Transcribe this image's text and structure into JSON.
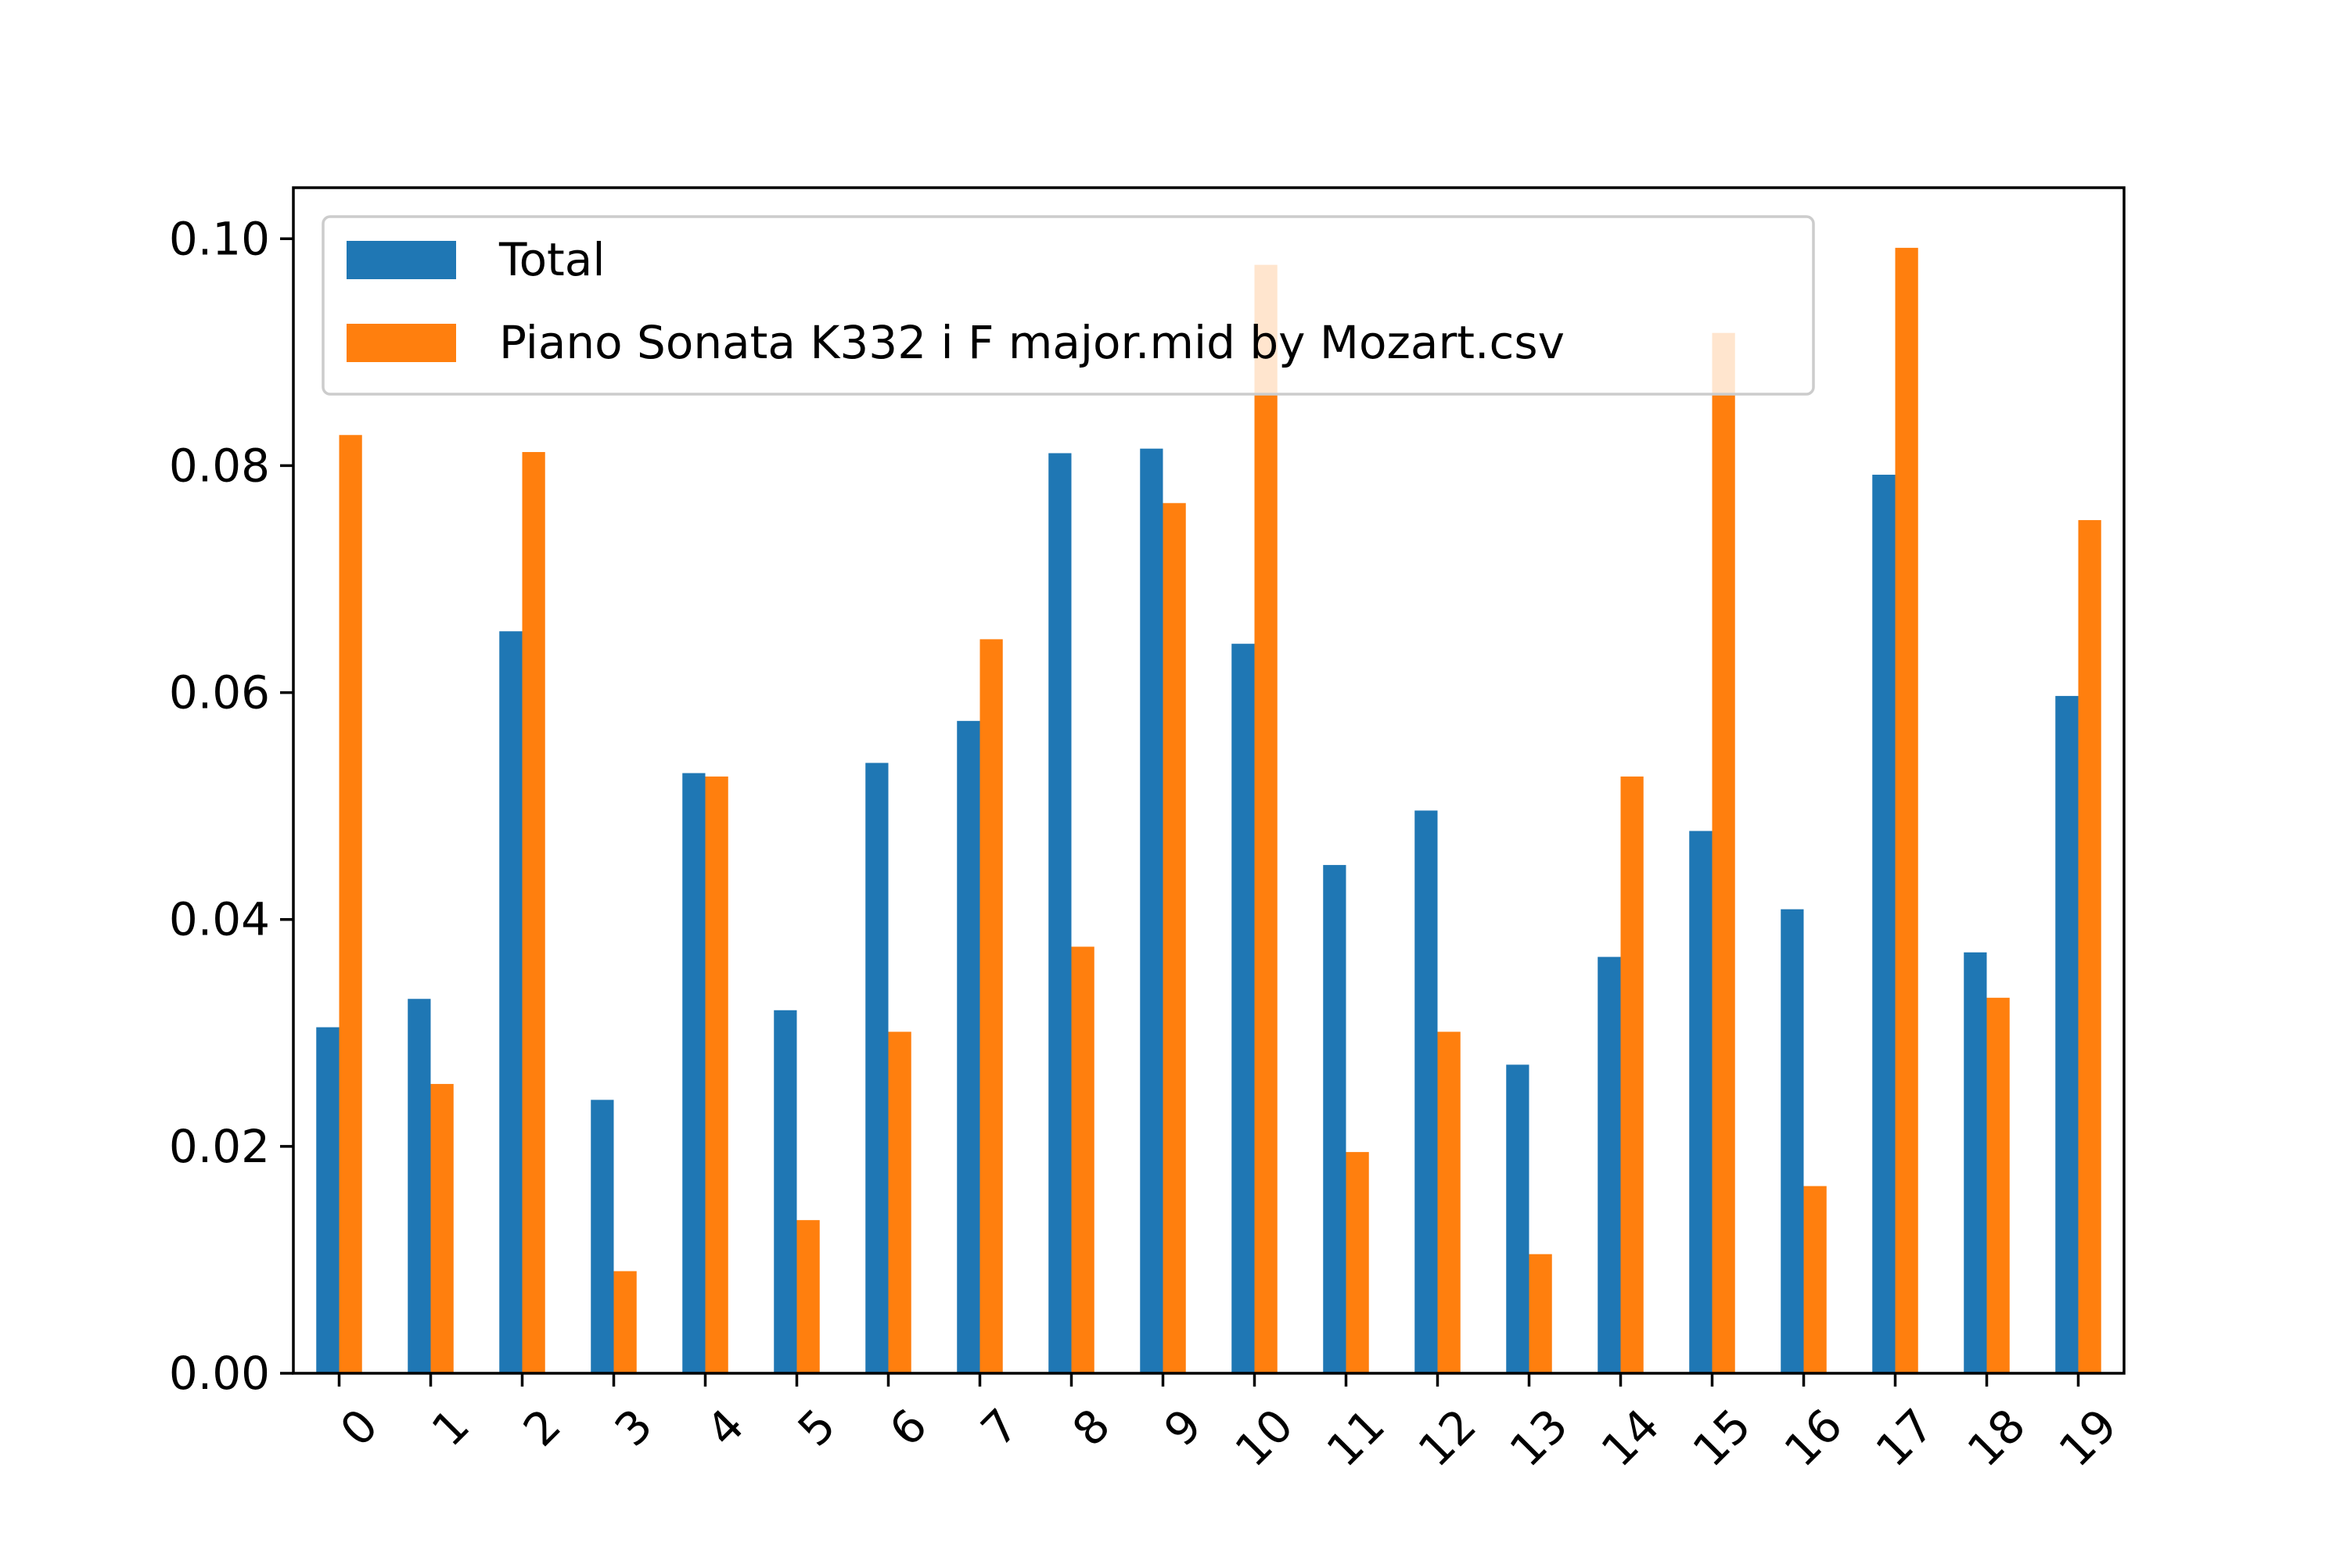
{
  "chart_data": {
    "type": "bar",
    "title": "",
    "xlabel": "",
    "ylabel": "",
    "categories": [
      "0",
      "1",
      "2",
      "3",
      "4",
      "5",
      "6",
      "7",
      "8",
      "9",
      "10",
      "11",
      "12",
      "13",
      "14",
      "15",
      "16",
      "17",
      "18",
      "19"
    ],
    "series": [
      {
        "name": "Total",
        "color": "#1f77b4",
        "values": [
          0.0305,
          0.033,
          0.0654,
          0.0241,
          0.0529,
          0.032,
          0.0538,
          0.0575,
          0.0811,
          0.0815,
          0.0643,
          0.0448,
          0.0496,
          0.0272,
          0.0367,
          0.0478,
          0.0409,
          0.0792,
          0.0371,
          0.0597
        ]
      },
      {
        "name": "Piano Sonata K332 i F major.mid by Mozart.csv",
        "color": "#ff7f0e",
        "values": [
          0.0827,
          0.0255,
          0.0812,
          0.009,
          0.0526,
          0.0135,
          0.0301,
          0.0647,
          0.0376,
          0.0767,
          0.0977,
          0.0195,
          0.0301,
          0.0105,
          0.0526,
          0.0917,
          0.0165,
          0.0992,
          0.0331,
          0.0752
        ]
      }
    ],
    "ylim": [
      0,
      0.1045
    ],
    "yticks": [
      0.0,
      0.02,
      0.04,
      0.06,
      0.08,
      0.1
    ],
    "ytick_labels": [
      "0.00",
      "0.02",
      "0.04",
      "0.06",
      "0.08",
      "0.10"
    ],
    "xtick_rotation_deg": 45,
    "grid": false,
    "legend_position": "upper-left"
  }
}
